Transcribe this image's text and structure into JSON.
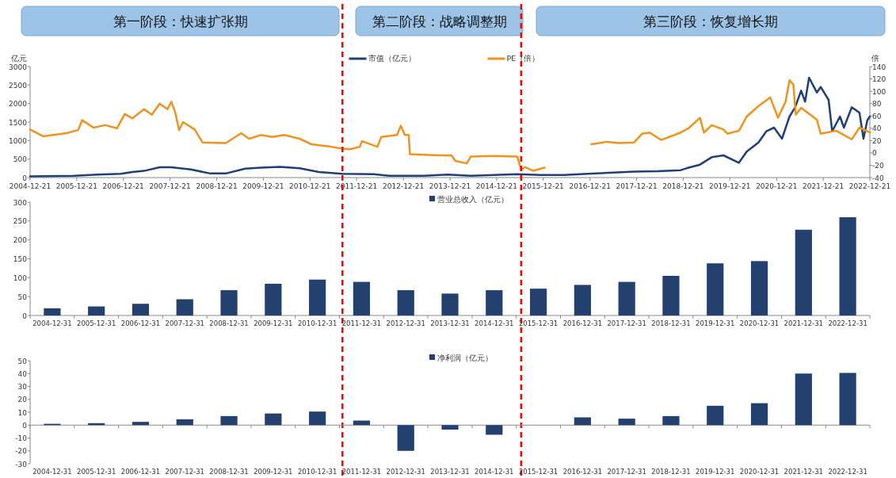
{
  "chart_data": [
    {
      "type": "line",
      "annotations": [
        "第一阶段：快速扩张期",
        "第二阶段：战略调整期",
        "第三阶段：恢复增长期"
      ],
      "ylabel": "亿元",
      "y2label": "倍",
      "legend": "top",
      "xlim": [
        "2004-12-21",
        "2022-12-21"
      ],
      "xticks": [
        "2004-12-21",
        "2005-12-21",
        "2006-12-21",
        "2007-12-21",
        "2008-12-21",
        "2009-12-21",
        "2010-12-21",
        "2011-12-21",
        "2012-12-21",
        "2013-12-21",
        "2014-12-21",
        "2015-12-21",
        "2016-12-21",
        "2017-12-21",
        "2018-12-21",
        "2019-12-21",
        "2020-12-21",
        "2021-12-21",
        "2022-12-21"
      ],
      "ylim": [
        0,
        3000
      ],
      "yticks": [
        0,
        500,
        1000,
        1500,
        2000,
        2500,
        3000
      ],
      "y2lim": [
        -40,
        140
      ],
      "y2ticks": [
        -40,
        -20,
        0,
        20,
        40,
        60,
        80,
        100,
        120,
        140
      ],
      "ref_lines": [
        {
          "axis": "x",
          "value": "2011-09-01",
          "color": "#ff0000",
          "line_style": "dashed"
        },
        {
          "axis": "x",
          "value": "2015-07-01",
          "color": "#ff0000",
          "line_style": "dashed"
        }
      ],
      "series": [
        {
          "name": "市值（亿元）",
          "color": "#203f75",
          "x": [
            "2004-12-21",
            "2005-12-01",
            "2006-06-01",
            "2006-12-01",
            "2007-03-01",
            "2007-06-01",
            "2007-10-01",
            "2008-01-01",
            "2008-06-01",
            "2008-11-01",
            "2009-03-01",
            "2009-08-01",
            "2009-12-01",
            "2010-05-01",
            "2010-10-01",
            "2011-03-01",
            "2011-09-01",
            "2012-05-01",
            "2012-09-01",
            "2013-06-01",
            "2013-12-01",
            "2014-06-01",
            "2015-06-01",
            "2015-12-01",
            "2016-06-01",
            "2016-12-01",
            "2017-12-01",
            "2018-06-01",
            "2018-12-01",
            "2019-01-15",
            "2019-05-01",
            "2019-08-01",
            "2019-11-01",
            "2020-03-01",
            "2020-05-01",
            "2020-08-01",
            "2020-10-01",
            "2020-12-01",
            "2021-02-01",
            "2021-04-01",
            "2021-05-15",
            "2021-07-01",
            "2021-08-01",
            "2021-09-01",
            "2021-11-01",
            "2021-12-01",
            "2022-02-01",
            "2022-03-01",
            "2022-05-01",
            "2022-06-01",
            "2022-08-01",
            "2022-10-01",
            "2022-11-01",
            "2022-12-01",
            "2022-12-21"
          ],
          "values": [
            30,
            50,
            80,
            100,
            150,
            180,
            280,
            280,
            220,
            110,
            110,
            240,
            270,
            290,
            250,
            150,
            100,
            90,
            50,
            50,
            80,
            50,
            90,
            70,
            70,
            100,
            160,
            170,
            200,
            250,
            350,
            550,
            600,
            400,
            700,
            950,
            1250,
            1350,
            1050,
            1650,
            1900,
            2350,
            2050,
            2700,
            2300,
            2450,
            2100,
            1250,
            1650,
            1350,
            1900,
            1750,
            1050,
            1550,
            1650
          ]
        },
        {
          "name": "PE（倍）",
          "color": "#f0921e",
          "axis": "y2",
          "x": [
            "2004-12-21",
            "2005-04-01",
            "2005-10-01",
            "2006-01-01",
            "2006-02-01",
            "2006-05-01",
            "2006-08-01",
            "2006-11-01",
            "2007-01-01",
            "2007-03-01",
            "2007-06-01",
            "2007-08-01",
            "2007-10-01",
            "2007-12-01",
            "2008-01-01",
            "2008-02-01",
            "2008-03-01",
            "2008-04-01",
            "2008-07-01",
            "2008-09-01",
            "2009-03-01",
            "2009-07-01",
            "2009-09-01",
            "2009-12-01",
            "2010-03-01",
            "2010-06-01",
            "2010-10-01",
            "2011-01-01",
            "2011-06-01",
            "2011-09-01",
            "2011-11-01",
            "2012-01-15",
            "2012-02-01",
            "2012-06-01",
            "2012-07-01",
            "2012-11-01",
            "2012-12-01",
            "2013-01-01",
            "2013-02-01",
            "2013-02-10",
            "2013-10-01",
            "2014-01-01",
            "2014-02-01",
            "2014-05-01",
            "2014-06-01",
            "2014-12-01",
            "2015-06-01",
            "2015-07-01",
            "2015-08-01",
            "2015-10-01",
            "2016-01-01",
            "2016-06-01",
            "2017-01-01",
            "2017-05-01",
            "2017-08-01",
            "2017-12-01",
            "2018-02-01",
            "2018-04-01",
            "2018-07-01",
            "2018-12-01",
            "2019-02-01",
            "2019-05-01",
            "2019-06-01",
            "2019-08-01",
            "2019-11-01",
            "2019-12-01",
            "2020-03-01",
            "2020-05-01",
            "2020-08-01",
            "2020-11-01",
            "2021-01-01",
            "2021-03-01",
            "2021-04-01",
            "2021-05-01",
            "2021-05-20",
            "2021-07-01",
            "2021-11-01",
            "2021-12-01",
            "2022-04-01",
            "2022-08-01",
            "2022-10-01",
            "2022-12-21"
          ],
          "values": [
            38,
            27,
            32,
            37,
            53,
            41,
            45,
            40,
            63,
            56,
            71,
            62,
            80,
            71,
            83,
            65,
            37,
            50,
            38,
            17,
            16,
            32,
            23,
            29,
            26,
            29,
            23,
            14,
            10,
            7,
            6,
            10,
            19,
            10,
            26,
            29,
            44,
            29,
            29,
            -2,
            -4,
            -4,
            -13,
            -17,
            -6,
            -5,
            -6,
            -27,
            -23,
            -29,
            -24,
            null,
            14,
            18,
            16,
            17,
            31,
            33,
            21,
            33,
            40,
            57,
            33,
            45,
            38,
            31,
            36,
            59,
            76,
            90,
            57,
            83,
            118,
            111,
            62,
            73,
            54,
            31,
            36,
            22,
            41,
            33
          ]
        }
      ]
    },
    {
      "type": "bar",
      "legend": "top",
      "categories": [
        "2004-12-31",
        "2005-12-31",
        "2006-12-31",
        "2007-12-31",
        "2008-12-31",
        "2009-12-31",
        "2010-12-31",
        "2011-12-31",
        "2012-12-31",
        "2013-12-31",
        "2014-12-31",
        "2015-12-31",
        "2016-12-31",
        "2017-12-31",
        "2018-12-31",
        "2019-12-31",
        "2020-12-31",
        "2021-12-31",
        "2022-12-31"
      ],
      "ylim": [
        0,
        300
      ],
      "yticks": [
        0,
        50,
        100,
        150,
        200,
        250,
        300
      ],
      "series": [
        {
          "name": "营业总收入（亿元）",
          "color": "#24406e",
          "values": [
            19,
            24,
            31,
            43,
            67,
            84,
            95,
            89,
            67,
            58,
            67,
            71,
            81,
            89,
            105,
            138,
            144,
            227,
            260
          ]
        }
      ]
    },
    {
      "type": "bar",
      "legend": "top",
      "categories": [
        "2004-12-31",
        "2005-12-31",
        "2006-12-31",
        "2007-12-31",
        "2008-12-31",
        "2009-12-31",
        "2010-12-31",
        "2011-12-31",
        "2012-12-31",
        "2013-12-31",
        "2014-12-31",
        "2015-12-31",
        "2016-12-31",
        "2017-12-31",
        "2018-12-31",
        "2019-12-31",
        "2020-12-31",
        "2021-12-31",
        "2022-12-31"
      ],
      "ylim": [
        -30,
        50
      ],
      "yticks": [
        -30,
        -20,
        -10,
        0,
        10,
        20,
        30,
        40,
        50
      ],
      "series": [
        {
          "name": "净利润（亿元）",
          "color": "#24406e",
          "values": [
            1,
            1.5,
            2.5,
            4.5,
            7,
            9,
            10.5,
            3.5,
            -20,
            -3.5,
            -7.5,
            0,
            6,
            5,
            7,
            15,
            17,
            40,
            40.5
          ]
        }
      ]
    }
  ]
}
